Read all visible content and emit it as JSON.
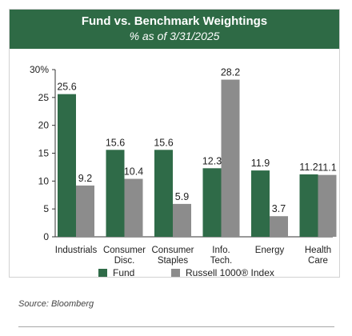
{
  "header": {
    "title": "Fund vs. Benchmark Weightings",
    "subtitle": "% as of 3/31/2025"
  },
  "source": "Source: Bloomberg",
  "colors": {
    "header_bg": "#2e6a45",
    "fund": "#2f6b48",
    "index": "#8c8c8c"
  },
  "chart_data": {
    "type": "bar",
    "title": "Fund vs. Benchmark Weightings",
    "subtitle": "% as of 3/31/2025",
    "categories": [
      [
        "Industrials"
      ],
      [
        "Consumer",
        "Disc."
      ],
      [
        "Consumer",
        "Staples"
      ],
      [
        "Info.",
        "Tech."
      ],
      [
        "Energy"
      ],
      [
        "Health",
        "Care"
      ]
    ],
    "series": [
      {
        "name": "Fund",
        "values": [
          25.6,
          15.6,
          15.6,
          12.3,
          11.9,
          11.2
        ],
        "labels": [
          "25.6",
          "15.6",
          "15.6",
          "12.3",
          "11.9",
          "11.2"
        ]
      },
      {
        "name": "Russell 1000® Index",
        "values": [
          9.2,
          10.4,
          5.9,
          28.2,
          3.7,
          11.1
        ],
        "labels": [
          "9.2",
          "10.4",
          "5.9",
          "28.2",
          "3.7",
          "11.1"
        ]
      }
    ],
    "yticks": [
      0,
      5,
      10,
      15,
      20,
      25,
      30
    ],
    "ytick_labels": [
      "0",
      "5",
      "10",
      "15",
      "20",
      "25",
      "30%"
    ],
    "ylim": [
      0,
      30
    ],
    "grid": false,
    "legend": "bottom"
  }
}
